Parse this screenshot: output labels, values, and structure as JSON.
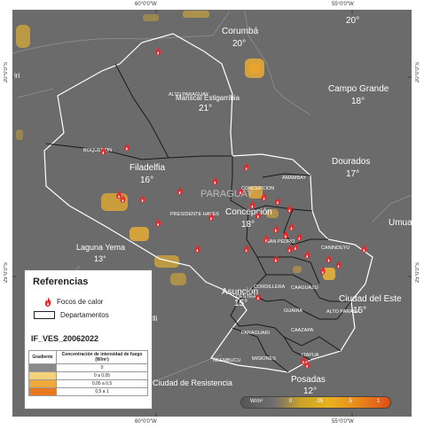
{
  "coords": {
    "top": [
      "60°0'0\"W",
      "55°0'0\"W"
    ],
    "bottom": [
      "60°0'0\"W",
      "55°0'0\"W"
    ],
    "left": [
      "20°0'0\"S",
      "25°0'0\"S"
    ],
    "right": [
      "20°0'0\"S",
      "25°0'0\"S"
    ]
  },
  "cities": [
    {
      "name": "Corumbá",
      "temp": "20°"
    },
    {
      "name": "20°",
      "temp": ""
    },
    {
      "name": "Mariscal Estigarribia",
      "temp": "21°"
    },
    {
      "name": "Campo Grande",
      "temp": "18°"
    },
    {
      "name": "Dourados",
      "temp": "17°"
    },
    {
      "name": "Filadelfia",
      "temp": "16°"
    },
    {
      "name": "Concepción",
      "temp": "18°"
    },
    {
      "name": "Laguna Yema",
      "temp": "13°"
    },
    {
      "name": "Asunción",
      "temp": "15°"
    },
    {
      "name": "Ciudad del Este",
      "temp": "15°"
    },
    {
      "name": "Posadas",
      "temp": "12°"
    },
    {
      "name": "Umua",
      "temp": ""
    },
    {
      "name": "Ciudad de Resistencia",
      "temp": ""
    },
    {
      "name": "iri",
      "temp": ""
    },
    {
      "name": "lli",
      "temp": ""
    }
  ],
  "country_label": "PARAGUAY",
  "departments": [
    "ALTO PARAGUAY",
    "BOQUERON",
    "PRESIDENTE HAYES",
    "CONCEPCION",
    "AMAMBAY",
    "SAN PEDRO",
    "CANINDEYU",
    "CORDILLERA",
    "CAAGUAZU",
    "ALTO PARANA",
    "GUAIRA",
    "CAAZAPA",
    "PARAGUARI",
    "NEEMBUCU",
    "MISIONES",
    "ITAPUA",
    "CENTRAL"
  ],
  "legend": {
    "title": "Referencias",
    "fire_label": "Focos de calor",
    "dept_label": "Departamentos",
    "code": "IF_VES_20062022",
    "table_header": [
      "Gradiente",
      "Concentración de intensidad de fuego (W/m²)"
    ],
    "rows": [
      {
        "label": "0",
        "color": "#8a8a8a"
      },
      {
        "label": "0 a 0,05",
        "color": "#f3d27a"
      },
      {
        "label": "0,05 a 0,5",
        "color": "#f0a83a"
      },
      {
        "label": "0,5 a 1",
        "color": "#e8791e"
      }
    ]
  },
  "scale": {
    "unit": "W/m²",
    "ticks": [
      "0",
      ".05",
      ".5",
      "1"
    ]
  },
  "fires": [
    {
      "lon": -59.95,
      "lat": -19.35
    },
    {
      "lon": -61.35,
      "lat": -21.85
    },
    {
      "lon": -60.75,
      "lat": -21.75
    },
    {
      "lon": -60.95,
      "lat": -22.95
    },
    {
      "lon": -60.85,
      "lat": -23.05
    },
    {
      "lon": -60.35,
      "lat": -23.05
    },
    {
      "lon": -59.4,
      "lat": -22.85
    },
    {
      "lon": -58.5,
      "lat": -22.6
    },
    {
      "lon": -57.7,
      "lat": -22.25
    },
    {
      "lon": -57.85,
      "lat": -22.85
    },
    {
      "lon": -57.55,
      "lat": -23.2
    },
    {
      "lon": -57.25,
      "lat": -23.0
    },
    {
      "lon": -56.9,
      "lat": -23.1
    },
    {
      "lon": -56.6,
      "lat": -23.3
    },
    {
      "lon": -57.4,
      "lat": -23.45
    },
    {
      "lon": -56.55,
      "lat": -23.75
    },
    {
      "lon": -56.95,
      "lat": -23.8
    },
    {
      "lon": -56.7,
      "lat": -23.95
    },
    {
      "lon": -56.35,
      "lat": -24.0
    },
    {
      "lon": -57.2,
      "lat": -24.05
    },
    {
      "lon": -56.6,
      "lat": -24.3
    },
    {
      "lon": -56.45,
      "lat": -24.25
    },
    {
      "lon": -56.15,
      "lat": -24.45
    },
    {
      "lon": -56.95,
      "lat": -24.55
    },
    {
      "lon": -55.6,
      "lat": -24.55
    },
    {
      "lon": -55.35,
      "lat": -24.7
    },
    {
      "lon": -55.75,
      "lat": -24.85
    },
    {
      "lon": -54.7,
      "lat": -24.3
    },
    {
      "lon": -58.95,
      "lat": -24.3
    },
    {
      "lon": -57.7,
      "lat": -24.3
    },
    {
      "lon": -59.95,
      "lat": -23.65
    },
    {
      "lon": -58.6,
      "lat": -23.5
    },
    {
      "lon": -57.4,
      "lat": -25.5
    },
    {
      "lon": -56.15,
      "lat": -27.2
    },
    {
      "lon": -56.25,
      "lat": -27.1
    }
  ]
}
